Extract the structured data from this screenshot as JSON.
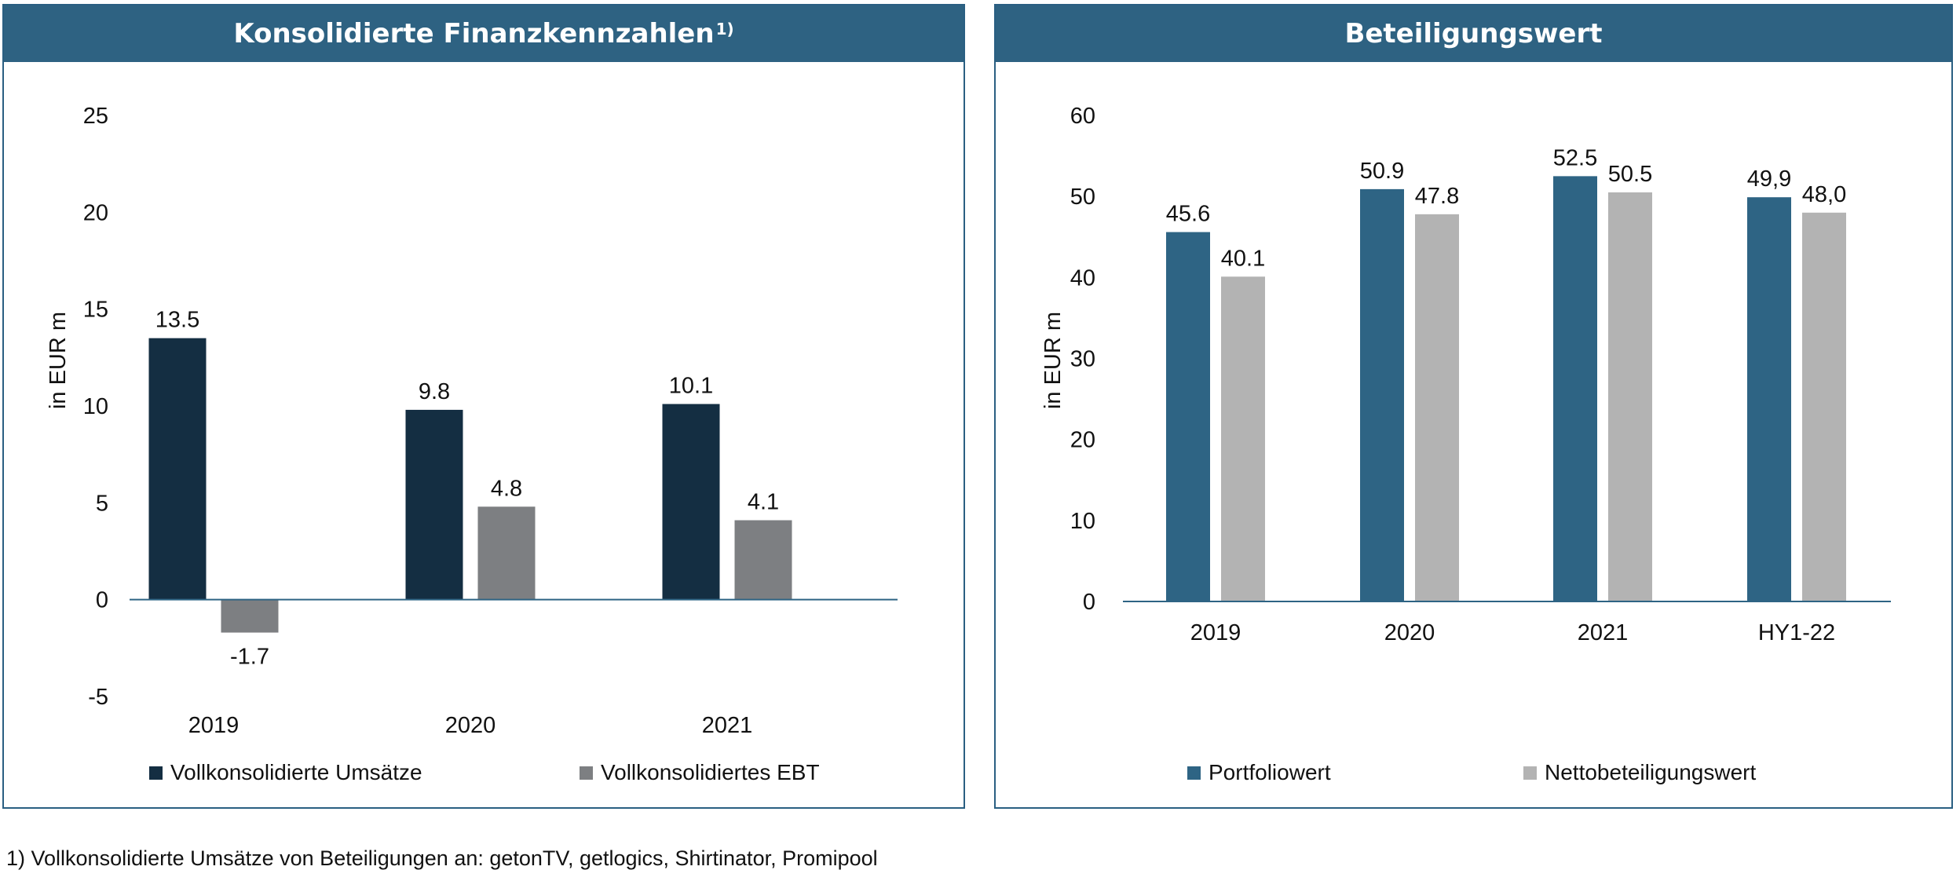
{
  "colors": {
    "header_bg": "#2e6282",
    "border": "#2a5f82",
    "dark_navy": "#142e42",
    "gray": "#7d7f82",
    "steel_blue": "#2e6484",
    "light_gray": "#b3b3b3"
  },
  "panels": [
    {
      "header": {
        "title": "Konsolidierte Finanzkennzahlen",
        "title_sup": "1)"
      },
      "legend": [
        {
          "label": "Vollkonsolidierte Umsätze",
          "color": "#142e42"
        },
        {
          "label": "Vollkonsolidiertes EBT",
          "color": "#7d7f82"
        }
      ]
    },
    {
      "header": {
        "title": "Beteiligungswert",
        "title_sup": ""
      },
      "legend": [
        {
          "label": "Portfoliowert",
          "color": "#2e6484"
        },
        {
          "label": "Nettobeteiligungswert",
          "color": "#b3b3b3"
        }
      ]
    }
  ],
  "chart_data": [
    {
      "type": "bar",
      "title": "Konsolidierte Finanzkennzahlen",
      "ylabel": "in EUR m",
      "xlabel": "",
      "ylim": [
        -5,
        25
      ],
      "yticks": [
        -5,
        0,
        5,
        10,
        15,
        20,
        25
      ],
      "grid": false,
      "legend_position": "bottom",
      "categories": [
        "2019",
        "2020",
        "2021"
      ],
      "series": [
        {
          "name": "Vollkonsolidierte Umsätze",
          "values": [
            13.5,
            9.8,
            10.1
          ],
          "labels": [
            "13.5",
            "9.8",
            "10.1"
          ],
          "color": "#142e42"
        },
        {
          "name": "Vollkonsolidiertes EBT",
          "values": [
            -1.7,
            4.8,
            4.1
          ],
          "labels": [
            "-1.7",
            "4.8",
            "4.1"
          ],
          "color": "#7d7f82"
        }
      ]
    },
    {
      "type": "bar",
      "title": "Beteiligungswert",
      "ylabel": "in EUR m",
      "xlabel": "",
      "ylim": [
        0,
        60
      ],
      "yticks": [
        0,
        10,
        20,
        30,
        40,
        50,
        60
      ],
      "grid": false,
      "legend_position": "bottom",
      "categories": [
        "2019",
        "2020",
        "2021",
        "HY1-22"
      ],
      "series": [
        {
          "name": "Portfoliowert",
          "values": [
            45.6,
            50.9,
            52.5,
            49.9
          ],
          "labels": [
            "45.6",
            "50.9",
            "52.5",
            "49,9"
          ],
          "color": "#2e6484"
        },
        {
          "name": "Nettobeteiligungswert",
          "values": [
            40.1,
            47.8,
            50.5,
            48.0
          ],
          "labels": [
            "40.1",
            "47.8",
            "50.5",
            "48,0"
          ],
          "color": "#b3b3b3"
        }
      ]
    }
  ],
  "footnote": "1) Vollkonsolidierte Umsätze von Beteiligungen an: getonTV, getlogics, Shirtinator, Promipool"
}
